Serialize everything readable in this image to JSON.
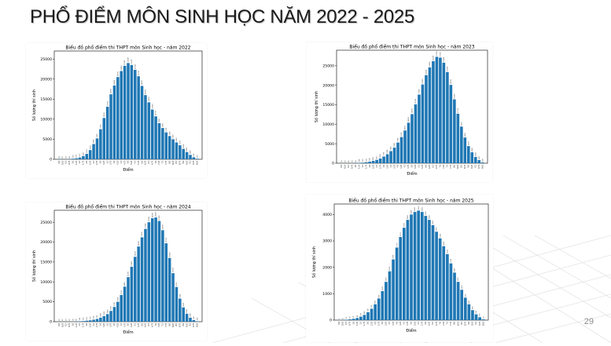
{
  "slide": {
    "title": "PHỔ ĐIỂM MÔN SINH HỌC NĂM 2022 - 2025",
    "page_number": "29"
  },
  "colors": {
    "bar": "#1f77b4",
    "axis": "#000000",
    "background": "#ffffff",
    "grid_lines": "#dcdcdc"
  },
  "chart_data": [
    {
      "type": "bar",
      "title": "Biểu đồ phổ điểm thi THPT môn Sinh học - năm 2022",
      "xlabel": "Điểm",
      "ylabel": "Số lượng thí sinh",
      "ylim": [
        0,
        27000
      ],
      "yticks": [
        0,
        5000,
        10000,
        15000,
        20000,
        25000
      ],
      "categories": [
        "0.0",
        "0.25",
        "0.5",
        "0.75",
        "1.0",
        "1.25",
        "1.5",
        "1.75",
        "2.0",
        "2.25",
        "2.5",
        "2.75",
        "3.0",
        "3.25",
        "3.5",
        "3.75",
        "4.0",
        "4.25",
        "4.5",
        "4.75",
        "5.0",
        "5.25",
        "5.5",
        "5.75",
        "6.0",
        "6.25",
        "6.5",
        "6.75",
        "7.0",
        "7.25",
        "7.5",
        "7.75",
        "8.0",
        "8.25",
        "8.5",
        "8.75",
        "9.0",
        "9.25",
        "9.5",
        "9.75",
        "10.0"
      ],
      "values": [
        80,
        20,
        40,
        80,
        150,
        250,
        450,
        800,
        1350,
        2300,
        3800,
        5200,
        7500,
        10300,
        13100,
        16200,
        18400,
        20500,
        22000,
        23300,
        24000,
        23500,
        22300,
        20700,
        18300,
        16000,
        14200,
        12400,
        10700,
        9000,
        7800,
        6700,
        5800,
        5000,
        4200,
        3500,
        2600,
        1800,
        1100,
        500,
        150
      ],
      "grid": false
    },
    {
      "type": "bar",
      "title": "Biểu đồ phổ điểm thi THPT môn Sinh học - năm 2023",
      "xlabel": "Điểm",
      "ylabel": "Số lượng thí sinh",
      "ylim": [
        0,
        29000
      ],
      "yticks": [
        0,
        5000,
        10000,
        15000,
        20000,
        25000
      ],
      "categories": [
        "0.0",
        "0.25",
        "0.5",
        "0.75",
        "1.0",
        "1.25",
        "1.5",
        "1.75",
        "2.0",
        "2.25",
        "2.5",
        "2.75",
        "3.0",
        "3.25",
        "3.5",
        "3.75",
        "4.0",
        "4.25",
        "4.5",
        "4.75",
        "5.0",
        "5.25",
        "5.5",
        "5.75",
        "6.0",
        "6.25",
        "6.5",
        "6.75",
        "7.0",
        "7.25",
        "7.5",
        "7.75",
        "8.0",
        "8.25",
        "8.5",
        "8.75",
        "9.0",
        "9.25",
        "9.5",
        "9.75",
        "10.0"
      ],
      "values": [
        30,
        10,
        20,
        30,
        60,
        100,
        150,
        250,
        400,
        600,
        850,
        1200,
        1700,
        2300,
        3100,
        4000,
        5300,
        6700,
        8400,
        10400,
        12600,
        15100,
        17600,
        20200,
        22600,
        24600,
        26200,
        27300,
        27100,
        25800,
        23400,
        20100,
        16400,
        12700,
        9400,
        6600,
        4400,
        2800,
        1600,
        800,
        200
      ],
      "grid": false
    },
    {
      "type": "bar",
      "title": "Biểu đồ phổ điểm thi THPT môn Sinh học - năm 2024",
      "xlabel": "Điểm",
      "ylabel": "Số lượng thí sinh",
      "ylim": [
        0,
        28000
      ],
      "yticks": [
        0,
        5000,
        10000,
        15000,
        20000,
        25000
      ],
      "categories": [
        "0.0",
        "0.25",
        "0.5",
        "0.75",
        "1.0",
        "1.25",
        "1.5",
        "1.75",
        "2.0",
        "2.25",
        "2.5",
        "2.75",
        "3.0",
        "3.25",
        "3.5",
        "3.75",
        "4.0",
        "4.25",
        "4.5",
        "4.75",
        "5.0",
        "5.25",
        "5.5",
        "5.75",
        "6.0",
        "6.25",
        "6.5",
        "6.75",
        "7.0",
        "7.25",
        "7.5",
        "7.75",
        "8.0",
        "8.25",
        "8.5",
        "8.75",
        "9.0",
        "9.25",
        "9.5",
        "9.75",
        "10.0"
      ],
      "values": [
        20,
        10,
        10,
        20,
        40,
        60,
        100,
        150,
        250,
        350,
        500,
        700,
        1000,
        1400,
        1900,
        2700,
        3700,
        5000,
        6700,
        8800,
        11200,
        13800,
        16300,
        18900,
        21200,
        23300,
        25000,
        26000,
        26200,
        25300,
        23000,
        19700,
        16000,
        12200,
        8700,
        5800,
        3600,
        2000,
        1000,
        400,
        100
      ],
      "grid": false
    },
    {
      "type": "bar",
      "title": "Biểu đồ phổ điểm thi THPT môn Sinh học - năm 2025",
      "xlabel": "Điểm",
      "ylabel": "Số lượng thí sinh",
      "ylim": [
        0,
        4400
      ],
      "yticks": [
        0,
        1000,
        2000,
        3000,
        4000
      ],
      "categories": [
        "0.0",
        "0.25",
        "0.5",
        "0.75",
        "1.0",
        "1.25",
        "1.5",
        "1.75",
        "2.0",
        "2.25",
        "2.5",
        "2.75",
        "3.0",
        "3.25",
        "3.5",
        "3.75",
        "4.0",
        "4.25",
        "4.5",
        "4.75",
        "5.0",
        "5.25",
        "5.5",
        "5.75",
        "6.0",
        "6.25",
        "6.5",
        "6.75",
        "7.0",
        "7.25",
        "7.5",
        "7.75",
        "8.0",
        "8.25",
        "8.5",
        "8.75",
        "9.0",
        "9.25",
        "9.5",
        "9.75",
        "10.0"
      ],
      "values": [
        5,
        8,
        15,
        30,
        50,
        80,
        130,
        200,
        300,
        430,
        600,
        820,
        1100,
        1450,
        1850,
        2300,
        2750,
        3150,
        3500,
        3800,
        4000,
        4100,
        4150,
        4100,
        3950,
        3800,
        3600,
        3350,
        3100,
        2800,
        2500,
        2150,
        1800,
        1450,
        1150,
        850,
        600,
        380,
        220,
        110,
        30
      ],
      "grid": false
    }
  ]
}
